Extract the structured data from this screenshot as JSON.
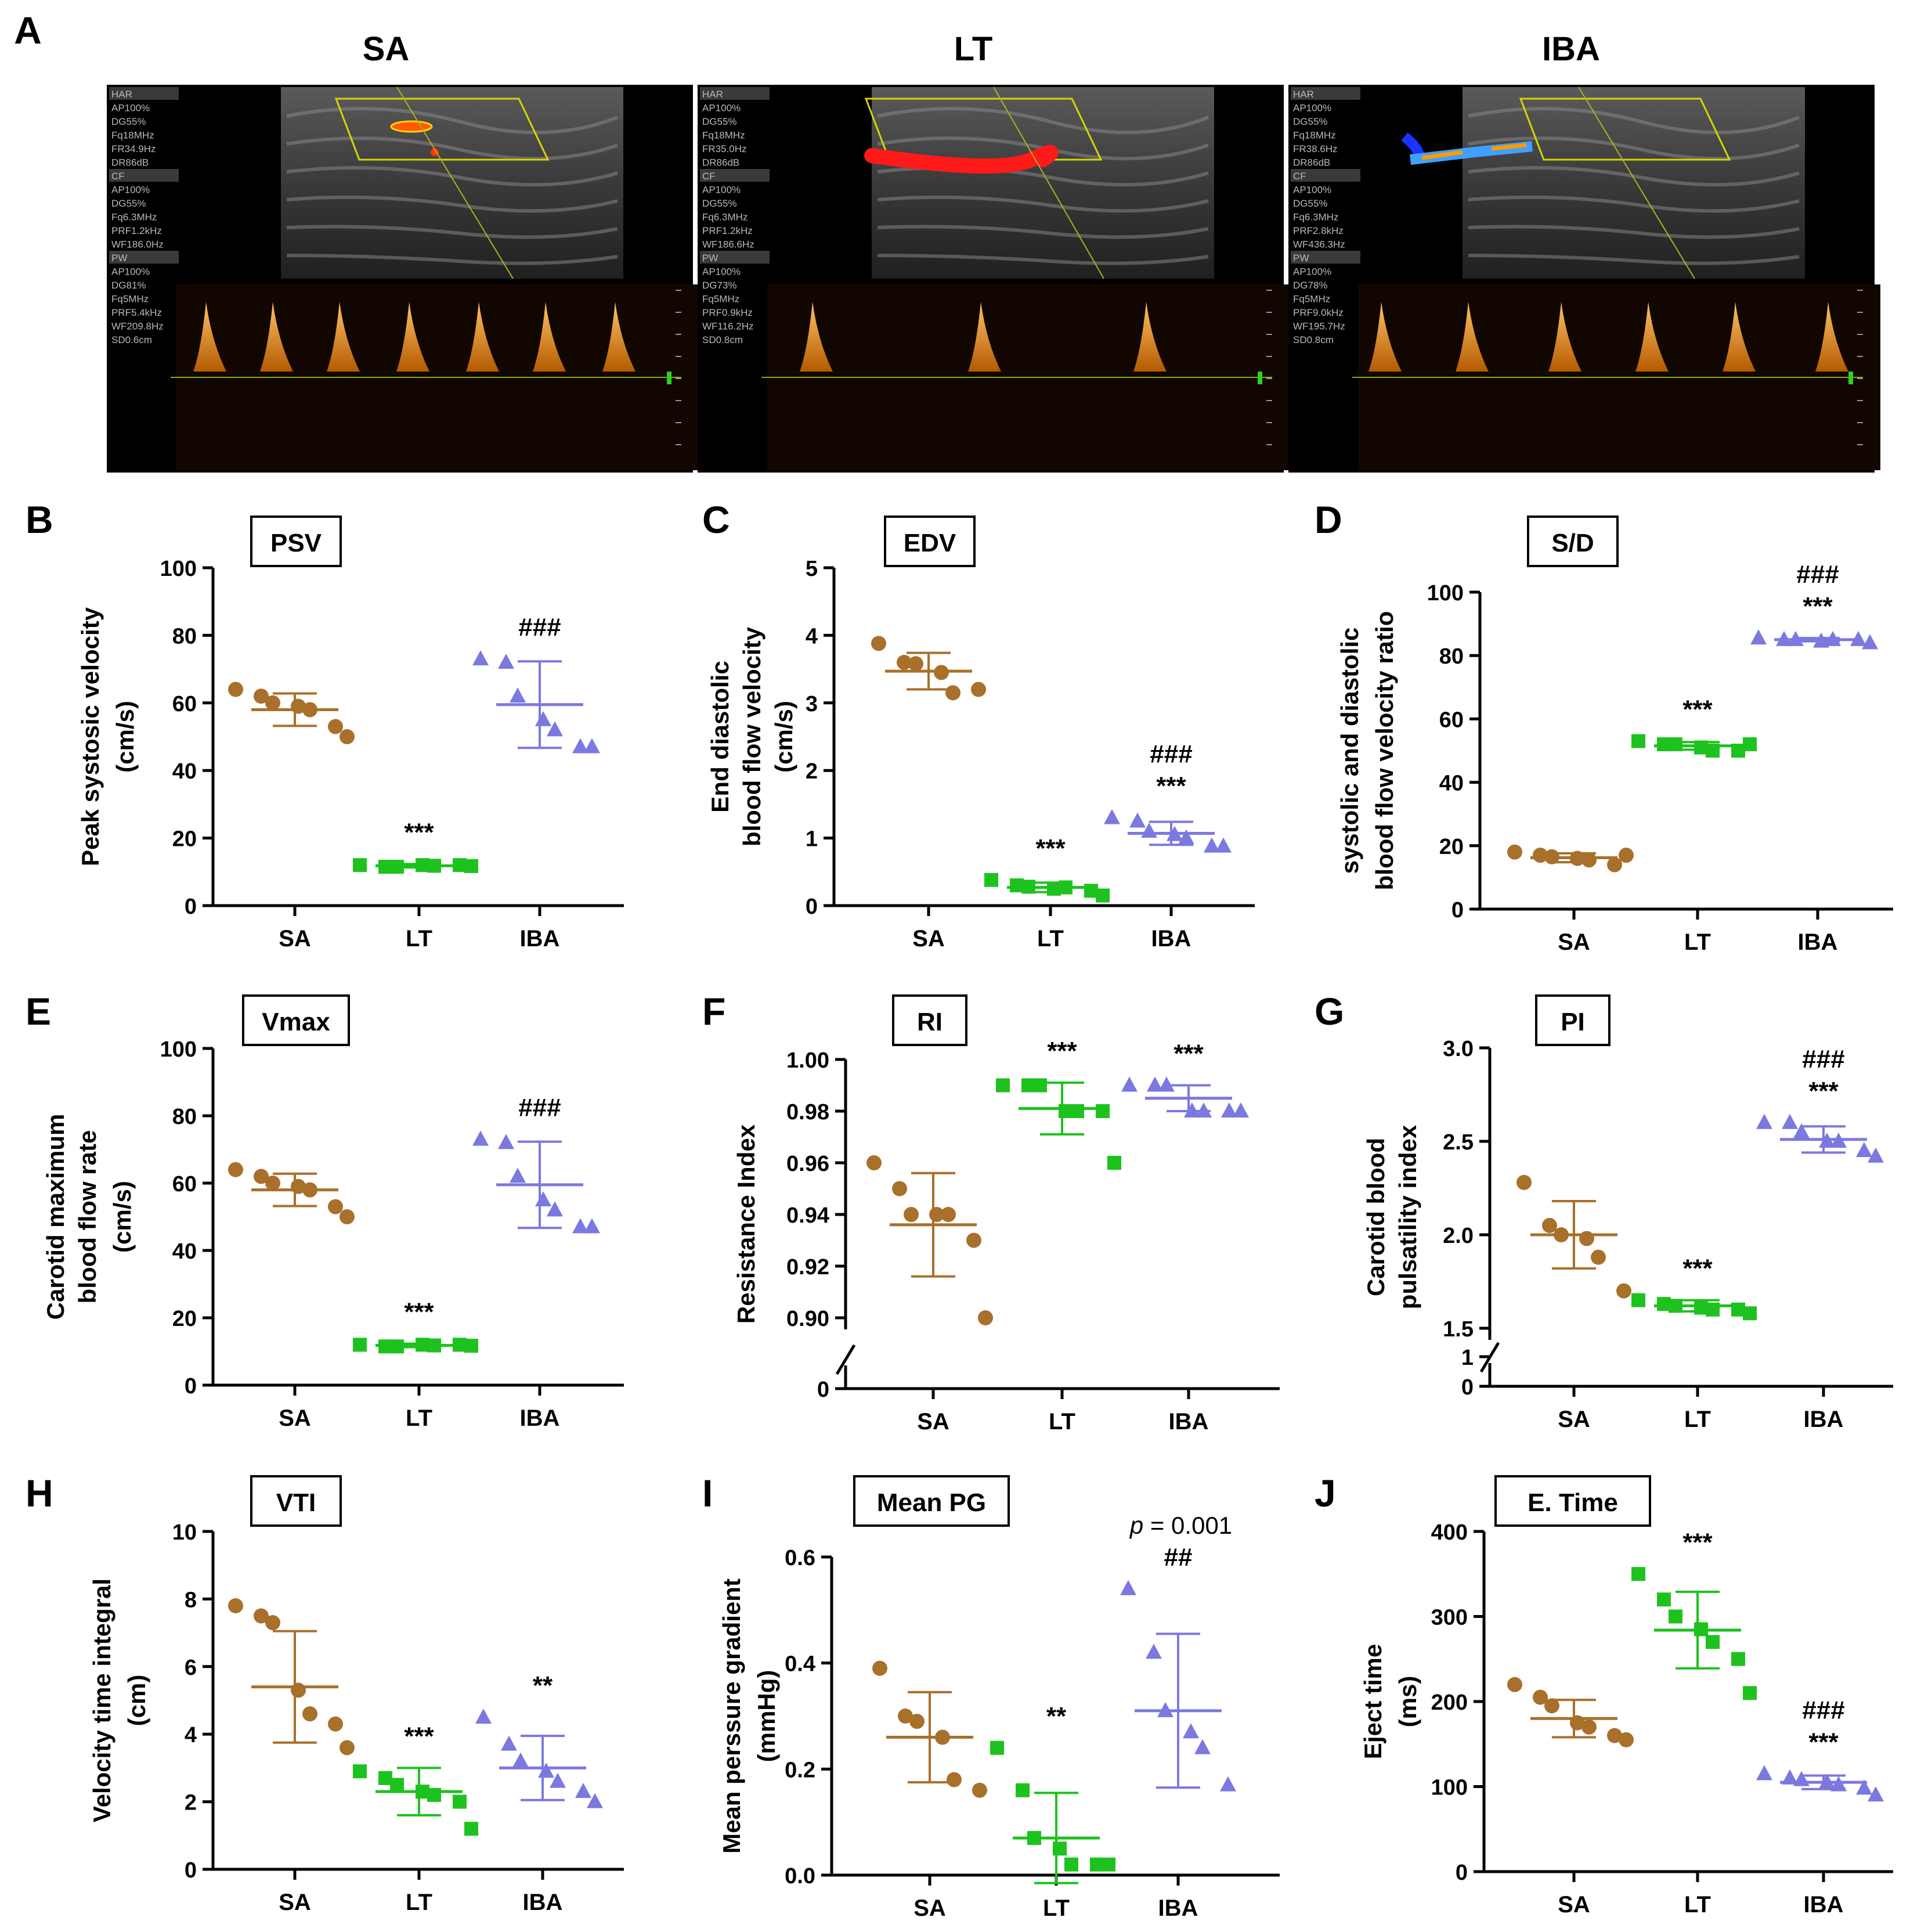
{
  "figure": {
    "panel_a": {
      "letter": "A",
      "titles": [
        "SA",
        "LT",
        "IBA"
      ],
      "overlays": [
        [
          "HAR",
          "AP100%",
          "DG55%",
          "Fq18MHz",
          "FR34.9Hz",
          "DR86dB",
          "CF",
          "AP100%",
          "DG55%",
          "Fq6.3MHz",
          "PRF1.2kHz",
          "WF186.0Hz",
          "PW",
          "AP100%",
          "DG81%",
          "Fq5MHz",
          "PRF5.4kHz",
          "WF209.8Hz",
          "SD0.6cm"
        ],
        [
          "HAR",
          "AP100%",
          "DG55%",
          "Fq18MHz",
          "FR35.0Hz",
          "DR86dB",
          "CF",
          "AP100%",
          "DG55%",
          "Fq6.3MHz",
          "PRF1.2kHz",
          "WF186.6Hz",
          "PW",
          "AP100%",
          "DG73%",
          "Fq5MHz",
          "PRF0.9kHz",
          "WF116.2Hz",
          "SD0.8cm"
        ],
        [
          "HAR",
          "AP100%",
          "DG55%",
          "Fq18MHz",
          "FR38.6Hz",
          "DR86dB",
          "CF",
          "AP100%",
          "DG55%",
          "Fq6.3MHz",
          "PRF2.8kHz",
          "WF436.3Hz",
          "PW",
          "AP100%",
          "DG78%",
          "Fq5MHz",
          "PRF9.0kHz",
          "WF195.7Hz",
          "SD0.8cm"
        ]
      ]
    },
    "colors": {
      "SA": "#a8702a",
      "LT": "#1ec21e",
      "IBA": "#7b78e0"
    }
  },
  "chart_data": [
    {
      "panel": "B",
      "type": "scatter",
      "title": "PSV",
      "ylabel": [
        "Peak systosic velocity",
        "(cm/s)"
      ],
      "ylim": [
        0,
        100
      ],
      "yticks": [
        "0",
        "20",
        "40",
        "60",
        "80",
        "100"
      ],
      "categories": [
        "SA",
        "LT",
        "IBA"
      ],
      "series": [
        {
          "name": "SA",
          "points": [
            64,
            62,
            60,
            59,
            58,
            53,
            50
          ],
          "mean": 58,
          "sd": 4.8
        },
        {
          "name": "LT",
          "points": [
            12,
            11.5,
            11.5,
            12,
            11.8,
            12,
            11.7
          ],
          "mean": 11.8,
          "sd": 0.5
        },
        {
          "name": "IBA",
          "points": [
            73,
            72,
            62,
            55,
            52,
            47,
            47
          ],
          "mean": 59.5,
          "sd": 12.8
        }
      ],
      "annotations": [
        {
          "group": "LT",
          "text": "***"
        },
        {
          "group": "IBA",
          "text": "###"
        }
      ]
    },
    {
      "panel": "C",
      "type": "scatter",
      "title": "EDV",
      "ylabel": [
        "End diastolic",
        "blood flow velocity",
        "(cm/s)"
      ],
      "ylim": [
        0,
        5
      ],
      "yticks": [
        "0",
        "1",
        "2",
        "3",
        "4",
        "5"
      ],
      "categories": [
        "SA",
        "LT",
        "IBA"
      ],
      "series": [
        {
          "name": "SA",
          "points": [
            3.88,
            3.6,
            3.58,
            3.45,
            3.15,
            3.2
          ],
          "mean": 3.47,
          "sd": 0.27
        },
        {
          "name": "LT",
          "points": [
            0.38,
            0.3,
            0.28,
            0.25,
            0.27,
            0.22,
            0.15
          ],
          "mean": 0.27,
          "sd": 0.07
        },
        {
          "name": "IBA",
          "points": [
            1.3,
            1.25,
            1.1,
            1.05,
            1.0,
            0.88,
            0.88
          ],
          "mean": 1.07,
          "sd": 0.17
        }
      ],
      "annotations": [
        {
          "group": "LT",
          "text": "***"
        },
        {
          "group": "IBA",
          "text": "***"
        },
        {
          "group": "IBA",
          "text": "###"
        }
      ]
    },
    {
      "panel": "D",
      "type": "scatter",
      "title": "S/D",
      "ylabel": [
        "systolic and diastolic",
        "blood flow velocity ratio"
      ],
      "ylim": [
        0,
        100
      ],
      "yticks": [
        "0",
        "20",
        "40",
        "60",
        "80",
        "100"
      ],
      "categories": [
        "SA",
        "LT",
        "IBA"
      ],
      "series": [
        {
          "name": "SA",
          "points": [
            18,
            17,
            16.5,
            16,
            15.5,
            14,
            17
          ],
          "mean": 16.2,
          "sd": 1.4
        },
        {
          "name": "LT",
          "points": [
            53,
            52,
            52,
            51,
            50,
            50,
            52
          ],
          "mean": 51.5,
          "sd": 1.2
        },
        {
          "name": "IBA",
          "points": [
            85.5,
            85,
            85,
            84.5,
            85,
            85,
            84
          ],
          "mean": 85,
          "sd": 0.5
        }
      ],
      "annotations": [
        {
          "group": "LT",
          "text": "***"
        },
        {
          "group": "IBA",
          "text": "***"
        },
        {
          "group": "IBA",
          "text": "###"
        }
      ]
    },
    {
      "panel": "E",
      "type": "scatter",
      "title": "Vmax",
      "ylabel": [
        "Carotid maximum",
        "blood flow rate",
        "(cm/s)"
      ],
      "ylim": [
        0,
        100
      ],
      "yticks": [
        "0",
        "20",
        "40",
        "60",
        "80",
        "100"
      ],
      "categories": [
        "SA",
        "LT",
        "IBA"
      ],
      "series": [
        {
          "name": "SA",
          "points": [
            64,
            62,
            60,
            59,
            58,
            53,
            50
          ],
          "mean": 58,
          "sd": 4.8
        },
        {
          "name": "LT",
          "points": [
            12,
            11.5,
            11.5,
            12,
            11.8,
            12,
            11.7
          ],
          "mean": 11.8,
          "sd": 0.5
        },
        {
          "name": "IBA",
          "points": [
            73,
            72,
            62,
            55,
            52,
            47,
            47
          ],
          "mean": 59.5,
          "sd": 12.8
        }
      ],
      "annotations": [
        {
          "group": "LT",
          "text": "***"
        },
        {
          "group": "IBA",
          "text": "###"
        }
      ]
    },
    {
      "panel": "F",
      "type": "scatter",
      "title": "RI",
      "ylabel": [
        "Resistance Index"
      ],
      "ylim": [
        0.9,
        1.0
      ],
      "axis_break": true,
      "yticks": [
        "0",
        "0.90",
        "0.92",
        "0.94",
        "0.96",
        "0.98",
        "1.00"
      ],
      "categories": [
        "SA",
        "LT",
        "IBA"
      ],
      "series": [
        {
          "name": "SA",
          "points": [
            0.96,
            0.95,
            0.94,
            0.94,
            0.94,
            0.93,
            0.9
          ],
          "mean": 0.936,
          "sd": 0.02
        },
        {
          "name": "LT",
          "points": [
            0.99,
            0.99,
            0.99,
            0.98,
            0.98,
            0.98,
            0.96
          ],
          "mean": 0.981,
          "sd": 0.01
        },
        {
          "name": "IBA",
          "points": [
            0.99,
            0.99,
            0.99,
            0.98,
            0.98,
            0.98,
            0.98
          ],
          "mean": 0.985,
          "sd": 0.005
        }
      ],
      "annotations": [
        {
          "group": "LT",
          "text": "***"
        },
        {
          "group": "IBA",
          "text": "***"
        }
      ]
    },
    {
      "panel": "G",
      "type": "scatter",
      "title": "PI",
      "ylabel": [
        "Carotid blood",
        "pulsatility index"
      ],
      "ylim": [
        1.5,
        3.0
      ],
      "axis_break": true,
      "yticks": [
        "0",
        "1",
        "1.5",
        "2.0",
        "2.5",
        "3.0"
      ],
      "categories": [
        "SA",
        "LT",
        "IBA"
      ],
      "series": [
        {
          "name": "SA",
          "points": [
            2.28,
            2.05,
            2.0,
            1.98,
            1.88,
            1.7
          ],
          "mean": 2.0,
          "sd": 0.18
        },
        {
          "name": "LT",
          "points": [
            1.65,
            1.63,
            1.62,
            1.61,
            1.6,
            1.6,
            1.58
          ],
          "mean": 1.62,
          "sd": 0.03
        },
        {
          "name": "IBA",
          "points": [
            2.6,
            2.6,
            2.55,
            2.5,
            2.5,
            2.45,
            2.42
          ],
          "mean": 2.51,
          "sd": 0.07
        }
      ],
      "annotations": [
        {
          "group": "LT",
          "text": "***"
        },
        {
          "group": "IBA",
          "text": "***"
        },
        {
          "group": "IBA",
          "text": "###"
        }
      ]
    },
    {
      "panel": "H",
      "type": "scatter",
      "title": "VTI",
      "ylabel": [
        "Velocity time integral",
        "(cm)"
      ],
      "ylim": [
        0,
        10
      ],
      "yticks": [
        "0",
        "2",
        "4",
        "6",
        "8",
        "10"
      ],
      "categories": [
        "SA",
        "LT",
        "IBA"
      ],
      "series": [
        {
          "name": "SA",
          "points": [
            7.8,
            7.5,
            7.3,
            5.3,
            4.6,
            4.3,
            3.6
          ],
          "mean": 5.4,
          "sd": 1.65
        },
        {
          "name": "LT",
          "points": [
            2.9,
            2.7,
            2.5,
            2.3,
            2.2,
            2.0,
            1.2
          ],
          "mean": 2.3,
          "sd": 0.7
        },
        {
          "name": "IBA",
          "points": [
            4.5,
            3.7,
            3.2,
            2.9,
            2.6,
            2.3,
            2.0
          ],
          "mean": 3.0,
          "sd": 0.95
        }
      ],
      "annotations": [
        {
          "group": "LT",
          "text": "***"
        },
        {
          "group": "IBA",
          "text": "**"
        }
      ]
    },
    {
      "panel": "I",
      "type": "scatter",
      "title": "Mean PG",
      "ylabel": [
        "Mean perssure gradient",
        "(mmHg)"
      ],
      "ylim": [
        0,
        0.6
      ],
      "yticks": [
        "0.0",
        "0.2",
        "0.4",
        "0.6"
      ],
      "categories": [
        "SA",
        "LT",
        "IBA"
      ],
      "series": [
        {
          "name": "SA",
          "points": [
            0.39,
            0.3,
            0.29,
            0.26,
            0.18,
            0.16
          ],
          "mean": 0.26,
          "sd": 0.085
        },
        {
          "name": "LT",
          "points": [
            0.24,
            0.16,
            0.07,
            0.05,
            0.02,
            0.02,
            0.02
          ],
          "mean": 0.07,
          "sd": 0.085
        },
        {
          "name": "IBA",
          "points": [
            0.54,
            0.42,
            0.31,
            0.27,
            0.24,
            0.17
          ],
          "mean": 0.31,
          "sd": 0.145
        }
      ],
      "annotations": [
        {
          "group": "LT",
          "text": "**"
        },
        {
          "group": "IBA",
          "text": "##"
        },
        {
          "group": "IBA",
          "text": "p = 0.001"
        }
      ]
    },
    {
      "panel": "J",
      "type": "scatter",
      "title": "E. Time",
      "ylabel": [
        "Eject time",
        "(ms)"
      ],
      "ylim": [
        0,
        400
      ],
      "yticks": [
        "0",
        "100",
        "200",
        "300",
        "400"
      ],
      "categories": [
        "SA",
        "LT",
        "IBA"
      ],
      "series": [
        {
          "name": "SA",
          "points": [
            220,
            205,
            195,
            175,
            170,
            160,
            155
          ],
          "mean": 180,
          "sd": 22
        },
        {
          "name": "LT",
          "points": [
            350,
            320,
            300,
            285,
            270,
            250,
            210
          ],
          "mean": 284,
          "sd": 45
        },
        {
          "name": "IBA",
          "points": [
            115,
            110,
            108,
            105,
            102,
            98,
            90
          ],
          "mean": 105,
          "sd": 8
        }
      ],
      "annotations": [
        {
          "group": "LT",
          "text": "***"
        },
        {
          "group": "IBA",
          "text": "***"
        },
        {
          "group": "IBA",
          "text": "###"
        }
      ]
    }
  ]
}
